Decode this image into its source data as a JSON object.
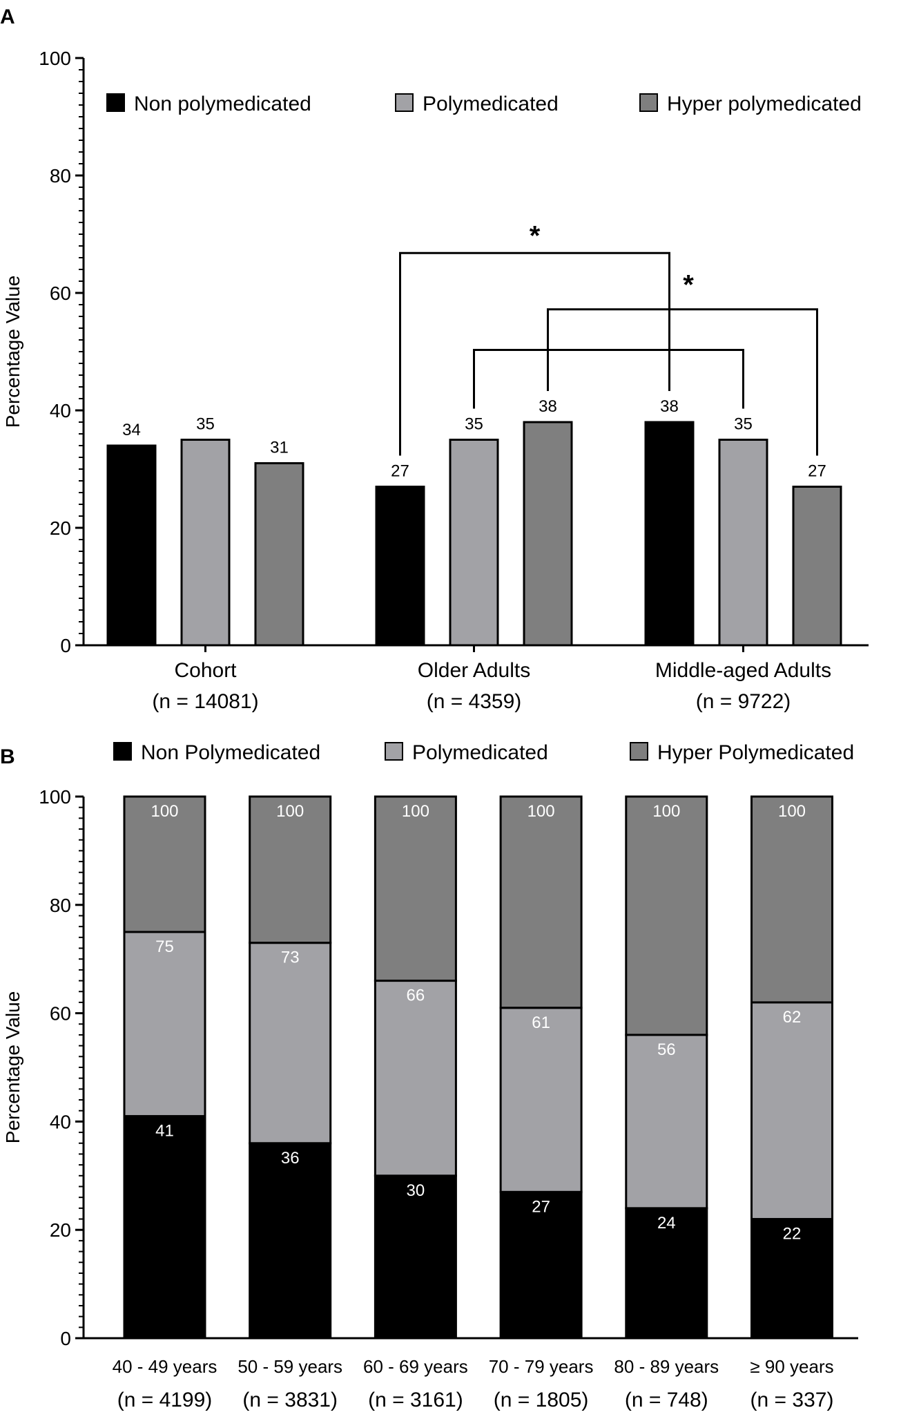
{
  "colors": {
    "non": "#000000",
    "poly": "#a2a2a6",
    "hyper": "#7f7f7f",
    "axis": "#000000",
    "stacked_label_on_dark": "#ffffff"
  },
  "chart_data": [
    {
      "panel": "A",
      "type": "bar",
      "ylabel": "Percentage Value",
      "ylim": [
        0,
        100
      ],
      "yticks": [
        "0",
        "20",
        "40",
        "60",
        "80",
        "100"
      ],
      "grid": false,
      "legend": [
        "Non polymedicated",
        "Polymedicated",
        "Hyper polymedicated"
      ],
      "legend_position": "top",
      "categories": [
        {
          "name": "Cohort",
          "n": "(n = 14081)"
        },
        {
          "name": "Older Adults",
          "n": "(n = 4359)"
        },
        {
          "name": "Middle-aged Adults",
          "n": "(n = 9722)"
        }
      ],
      "series": [
        {
          "name": "Non polymedicated",
          "values": [
            34,
            27,
            38
          ],
          "labels": [
            "34",
            "27",
            "38"
          ]
        },
        {
          "name": "Polymedicated",
          "values": [
            35,
            35,
            35
          ],
          "labels": [
            "35",
            "35",
            "35"
          ]
        },
        {
          "name": "Hyper polymedicated",
          "values": [
            31,
            38,
            27
          ],
          "labels": [
            "31",
            "38",
            "27"
          ]
        }
      ],
      "significance": [
        {
          "between": "Older Adults Non polymedicated vs Middle-aged Adults Non polymedicated",
          "label": "*"
        },
        {
          "between": "Older Adults Hyper polymedicated vs Middle-aged Adults Hyper polymedicated",
          "label": "*"
        },
        {
          "between": "Older Adults Polymedicated vs Middle-aged Adults Polymedicated",
          "label": ""
        }
      ]
    },
    {
      "panel": "B",
      "type": "bar",
      "stacked": true,
      "cumulative_labels": true,
      "ylabel": "Percentage Value",
      "ylim": [
        0,
        100
      ],
      "yticks": [
        "0",
        "20",
        "40",
        "60",
        "80",
        "100"
      ],
      "grid": false,
      "legend": [
        "Non Polymedicated",
        "Polymedicated",
        "Hyper Polymedicated"
      ],
      "legend_position": "top",
      "categories": [
        {
          "name": "40 - 49 years",
          "n": "(n = 4199)"
        },
        {
          "name": "50 - 59 years",
          "n": "(n = 3831)"
        },
        {
          "name": "60 - 69 years",
          "n": "(n = 3161)"
        },
        {
          "name": "70 - 79 years",
          "n": "(n = 1805)"
        },
        {
          "name": "80 - 89 years",
          "n": "(n = 748)"
        },
        {
          "name": "≥ 90 years",
          "n": "(n = 337)"
        }
      ],
      "series": [
        {
          "name": "Non Polymedicated",
          "cumulative": [
            41,
            36,
            30,
            27,
            24,
            22
          ],
          "labels": [
            "41",
            "36",
            "30",
            "27",
            "24",
            "22"
          ]
        },
        {
          "name": "Polymedicated",
          "cumulative": [
            75,
            73,
            66,
            61,
            56,
            62
          ],
          "labels": [
            "75",
            "73",
            "66",
            "61",
            "56",
            "62"
          ]
        },
        {
          "name": "Hyper Polymedicated",
          "cumulative": [
            100,
            100,
            100,
            100,
            100,
            100
          ],
          "labels": [
            "100",
            "100",
            "100",
            "100",
            "100",
            "100"
          ]
        }
      ]
    }
  ],
  "panels": {
    "a_label": "A",
    "b_label": "B"
  }
}
